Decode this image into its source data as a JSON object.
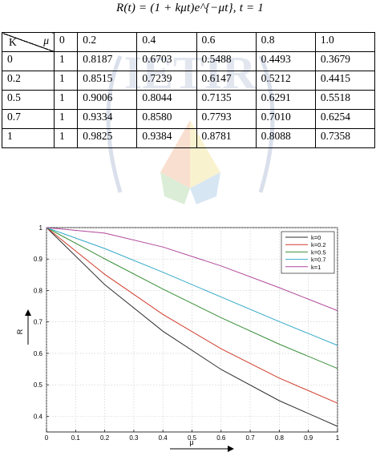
{
  "formula": "R(t) = (1 + kμt)e^{−μt}, t = 1",
  "table": {
    "corner_top": "μ",
    "corner_bottom": "K",
    "columns": [
      "0",
      "0.2",
      "0.4",
      "0.6",
      "0.8",
      "1.0"
    ],
    "rows": [
      {
        "k": "0",
        "cells": [
          "1",
          "0.8187",
          "0.6703",
          "0.5488",
          "0.4493",
          "0.3679"
        ]
      },
      {
        "k": "0.2",
        "cells": [
          "1",
          "0.8515",
          "0.7239",
          "0.6147",
          "0.5212",
          "0.4415"
        ]
      },
      {
        "k": "0.5",
        "cells": [
          "1",
          "0.9006",
          "0.8044",
          "0.7135",
          "0.6291",
          "0.5518"
        ]
      },
      {
        "k": "0.7",
        "cells": [
          "1",
          "0.9334",
          "0.8580",
          "0.7793",
          "0.7010",
          "0.6254"
        ]
      },
      {
        "k": "1",
        "cells": [
          "1",
          "0.9825",
          "0.9384",
          "0.8781",
          "0.8088",
          "0.7358"
        ]
      }
    ]
  },
  "chart_data": {
    "type": "line",
    "xlabel": "μ",
    "ylabel": "R",
    "xlim": [
      0,
      1
    ],
    "ylim": [
      0.35,
      1
    ],
    "xticks": [
      "0",
      "0.1",
      "0.2",
      "0.3",
      "0.4",
      "0.5",
      "0.6",
      "0.7",
      "0.8",
      "0.9",
      "1"
    ],
    "yticks": [
      "0.4",
      "0.5",
      "0.6",
      "0.7",
      "0.8",
      "0.9",
      "1"
    ],
    "legend_position": "top-right",
    "x": [
      0,
      0.2,
      0.4,
      0.6,
      0.8,
      1.0
    ],
    "series": [
      {
        "name": "k=0",
        "color": "#2e2e2e",
        "values": [
          1,
          0.8187,
          0.6703,
          0.5488,
          0.4493,
          0.3679
        ]
      },
      {
        "name": "k=0.2",
        "color": "#d03a2a",
        "values": [
          1,
          0.8515,
          0.7239,
          0.6147,
          0.5212,
          0.4415
        ]
      },
      {
        "name": "k=0.5",
        "color": "#3a8f3a",
        "values": [
          1,
          0.9006,
          0.8044,
          0.7135,
          0.6291,
          0.5518
        ]
      },
      {
        "name": "k=0.7",
        "color": "#35a9c9",
        "values": [
          1,
          0.9334,
          0.858,
          0.7793,
          0.701,
          0.6254
        ]
      },
      {
        "name": "k=1",
        "color": "#b0489a",
        "values": [
          1,
          0.9825,
          0.9384,
          0.8781,
          0.8088,
          0.7358
        ]
      }
    ]
  },
  "watermark": {
    "text": "IETIR",
    "colors": [
      "#f4c0a0",
      "#f5e6a0",
      "#b8dcb0",
      "#b0cfe8"
    ]
  }
}
